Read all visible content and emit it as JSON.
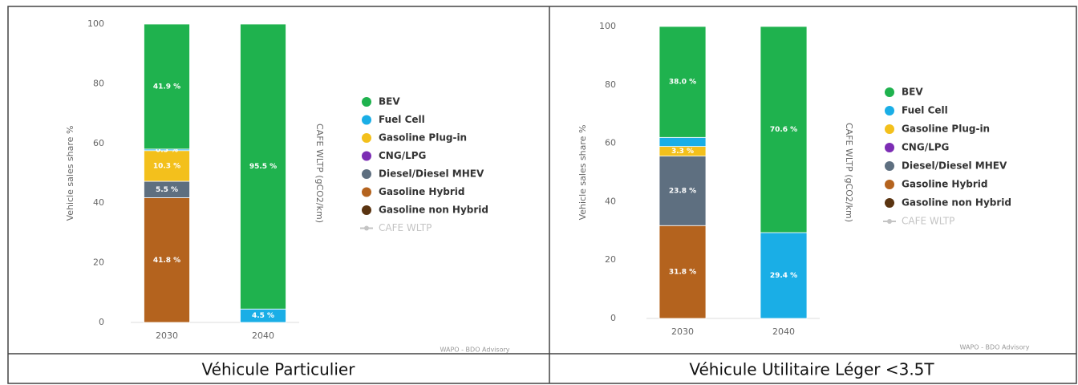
{
  "chart_data": [
    {
      "type": "bar",
      "stacked": true,
      "caption": "Véhicule Particulier",
      "ylabel": "Vehicle sales share %",
      "y2label": "CAFE WLTP (gCO2/km)",
      "source": "WAPO - BDO Advisory",
      "categories": [
        "2030",
        "2040"
      ],
      "ylim": [
        0,
        100
      ],
      "yticks": [
        0,
        20,
        40,
        60,
        80,
        100
      ],
      "series": [
        {
          "name": "BEV",
          "color": "#1fb24e",
          "values": [
            41.9,
            95.5
          ],
          "value_labels": [
            "41.9 %",
            "95.5 %"
          ]
        },
        {
          "name": "Fuel Cell",
          "color": "#1aaee6",
          "values": [
            0.5,
            4.5
          ],
          "value_labels": [
            "0.5 %",
            "4.5 %"
          ]
        },
        {
          "name": "Gasoline Plug-in",
          "color": "#f3c01c",
          "values": [
            10.3,
            null
          ],
          "value_labels": [
            "10.3 %",
            null
          ]
        },
        {
          "name": "CNG/LPG",
          "color": "#7c2db4",
          "values": [
            null,
            null
          ]
        },
        {
          "name": "Diesel/Diesel MHEV",
          "color": "#5e6f80",
          "values": [
            5.5,
            null
          ],
          "value_labels": [
            "5.5 %",
            null
          ]
        },
        {
          "name": "Gasoline Hybrid",
          "color": "#b4631e",
          "values": [
            41.8,
            null
          ],
          "value_labels": [
            "41.8 %",
            null
          ]
        },
        {
          "name": "Gasoline non Hybrid",
          "color": "#5a3411",
          "values": [
            null,
            null
          ]
        },
        {
          "name": "CAFE WLTP",
          "color": "#c4c4c4",
          "values": [
            null,
            null
          ],
          "axis": "y2",
          "visible": false
        }
      ]
    },
    {
      "type": "bar",
      "stacked": true,
      "caption": "Véhicule Utilitaire Léger <3.5T",
      "ylabel": "Vehicle sales share %",
      "y2label": "CAFE WLTP (gCO2/km)",
      "source": "WAPO - BDO Advisory",
      "categories": [
        "2030",
        "2040"
      ],
      "ylim": [
        0,
        100
      ],
      "yticks": [
        0,
        20,
        40,
        60,
        80,
        100
      ],
      "series": [
        {
          "name": "BEV",
          "color": "#1fb24e",
          "values": [
            38.0,
            70.6
          ],
          "value_labels": [
            "38.0 %",
            "70.6 %"
          ]
        },
        {
          "name": "Fuel Cell",
          "color": "#1aaee6",
          "values": [
            3.1,
            29.4
          ],
          "value_labels": [
            null,
            "29.4 %"
          ]
        },
        {
          "name": "Gasoline Plug-in",
          "color": "#f3c01c",
          "values": [
            3.3,
            null
          ],
          "value_labels": [
            "3.3 %",
            null
          ]
        },
        {
          "name": "CNG/LPG",
          "color": "#7c2db4",
          "values": [
            null,
            null
          ]
        },
        {
          "name": "Diesel/Diesel MHEV",
          "color": "#5e6f80",
          "values": [
            23.8,
            null
          ],
          "value_labels": [
            "23.8 %",
            null
          ]
        },
        {
          "name": "Gasoline Hybrid",
          "color": "#b4631e",
          "values": [
            31.8,
            null
          ],
          "value_labels": [
            "31.8 %",
            null
          ]
        },
        {
          "name": "Gasoline non Hybrid",
          "color": "#5a3411",
          "values": [
            null,
            null
          ]
        },
        {
          "name": "CAFE WLTP",
          "color": "#c4c4c4",
          "values": [
            null,
            null
          ],
          "axis": "y2",
          "visible": false
        }
      ]
    }
  ]
}
